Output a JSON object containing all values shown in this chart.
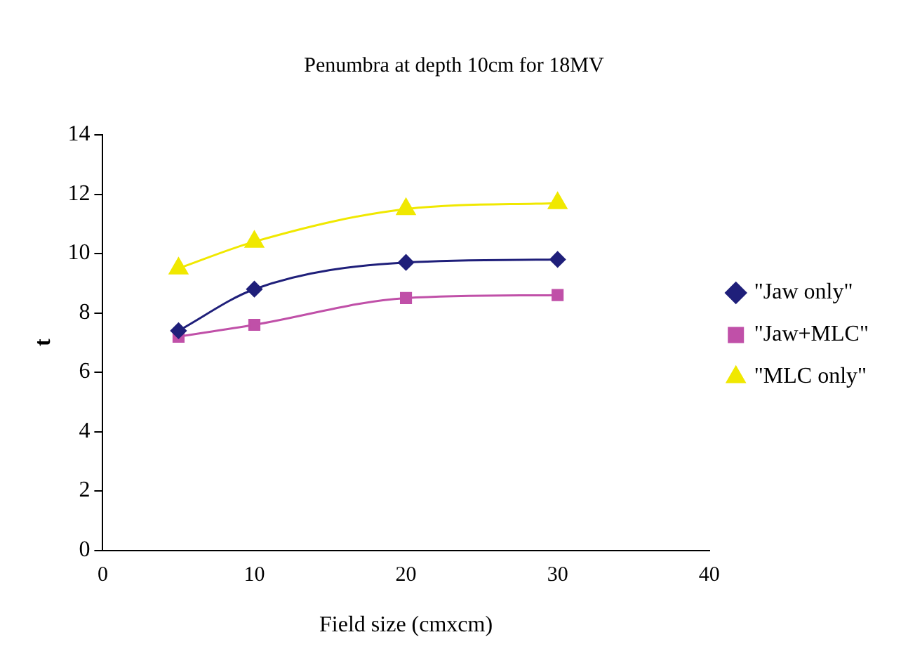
{
  "chart_data": {
    "type": "line",
    "title": "Penumbra at depth 10cm for 18MV",
    "xlabel": "Field size (cmxcm)",
    "ylabel": "t",
    "x": [
      5,
      10,
      20,
      30
    ],
    "series": [
      {
        "name": "\"Jaw only\"",
        "color": "#1f1f7a",
        "values": [
          7.4,
          8.8,
          9.7,
          9.8
        ],
        "marker": "diamond"
      },
      {
        "name": "\"Jaw+MLC\"",
        "color": "#c050a8",
        "values": [
          7.2,
          7.6,
          8.5,
          8.6
        ],
        "marker": "square"
      },
      {
        "name": "\"MLC only\"",
        "color": "#f0e800",
        "values": [
          9.5,
          10.4,
          11.5,
          11.7
        ],
        "marker": "triangle"
      }
    ],
    "xlim": [
      0,
      40
    ],
    "xticks": [
      0,
      10,
      20,
      30,
      40
    ],
    "ylim": [
      0,
      14
    ],
    "yticks": [
      0,
      2,
      4,
      6,
      8,
      10,
      12,
      14
    ],
    "grid": false,
    "legend": "right",
    "line_style": "solid"
  }
}
